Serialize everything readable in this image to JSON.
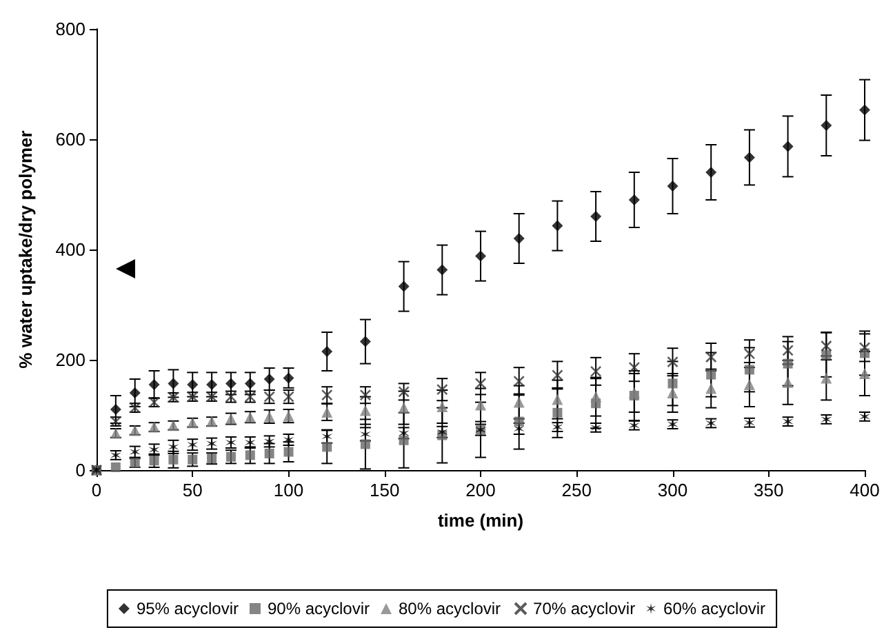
{
  "chart_data": {
    "type": "scatter",
    "xlabel": "time (min)",
    "ylabel": "% water uptake/dry polymer",
    "x": [
      0,
      10,
      20,
      30,
      40,
      50,
      60,
      70,
      80,
      90,
      100,
      120,
      140,
      160,
      180,
      200,
      220,
      240,
      260,
      280,
      300,
      320,
      340,
      360,
      380,
      400
    ],
    "xlim": [
      0,
      400
    ],
    "xticks": [
      0,
      50,
      100,
      150,
      200,
      250,
      300,
      350,
      400
    ],
    "ylim": [
      0,
      800
    ],
    "yticks": [
      0,
      200,
      400,
      600,
      800
    ],
    "grid": false,
    "legend": "bottom",
    "series": [
      {
        "name": "95% acyclovir",
        "color": "#000000",
        "marker": "diamond",
        "values": [
          0,
          110,
          140,
          155,
          157,
          155,
          155,
          157,
          157,
          165,
          167,
          215,
          233,
          333,
          363,
          388,
          420,
          443,
          460,
          490,
          515,
          540,
          567,
          587,
          625,
          653
        ],
        "errors": [
          null,
          25,
          25,
          25,
          25,
          22,
          22,
          20,
          20,
          20,
          18,
          35,
          40,
          45,
          45,
          45,
          45,
          45,
          45,
          50,
          50,
          50,
          50,
          55,
          55,
          55
        ]
      },
      {
        "name": "90% acyclovir",
        "color": "#666666",
        "marker": "square",
        "values": [
          0,
          5,
          13,
          17,
          19,
          19,
          21,
          24,
          27,
          30,
          33,
          42,
          47,
          54,
          63,
          73,
          88,
          104,
          121,
          135,
          157,
          173,
          182,
          193,
          209,
          212
        ],
        "errors": [
          null,
          null,
          8,
          12,
          15,
          12,
          10,
          12,
          15,
          18,
          18,
          30,
          45,
          50,
          50,
          50,
          50,
          45,
          45,
          45,
          40,
          40,
          40,
          40,
          40,
          40
        ]
      },
      {
        "name": "80% acyclovir",
        "color": "#808080",
        "marker": "triangle",
        "values": [
          0,
          67,
          72,
          78,
          81,
          86,
          88,
          93,
          96,
          97,
          98,
          105,
          108,
          113,
          115,
          118,
          123,
          128,
          133,
          140,
          140,
          148,
          155,
          159,
          167,
          175
        ],
        "errors": [
          null,
          8,
          8,
          8,
          8,
          8,
          8,
          10,
          10,
          12,
          12,
          15,
          25,
          30,
          30,
          30,
          30,
          35,
          35,
          35,
          35,
          35,
          40,
          40,
          40,
          40
        ]
      },
      {
        "name": "70% acyclovir",
        "color": "#333333",
        "marker": "cross",
        "values": [
          0,
          88,
          113,
          123,
          132,
          133,
          133,
          133,
          133,
          133,
          133,
          136,
          136,
          142,
          146,
          157,
          161,
          172,
          179,
          186,
          196,
          205,
          211,
          217,
          225,
          222
        ],
        "errors": [
          null,
          8,
          8,
          8,
          8,
          8,
          8,
          10,
          10,
          12,
          12,
          15,
          15,
          15,
          20,
          20,
          25,
          25,
          25,
          25,
          25,
          25,
          25,
          25,
          25,
          25
        ]
      },
      {
        "name": "60% acyclovir",
        "color": "#000000",
        "values": [
          0,
          27,
          33,
          37,
          42,
          46,
          48,
          50,
          50,
          52,
          55,
          61,
          65,
          67,
          69,
          73,
          75,
          78,
          77,
          81,
          83,
          85,
          86,
          88,
          92,
          97
        ],
        "errors": [
          null,
          8,
          10,
          10,
          12,
          10,
          10,
          10,
          10,
          10,
          10,
          12,
          12,
          10,
          10,
          10,
          10,
          8,
          8,
          8,
          8,
          8,
          8,
          8,
          8,
          8
        ]
      }
    ]
  }
}
